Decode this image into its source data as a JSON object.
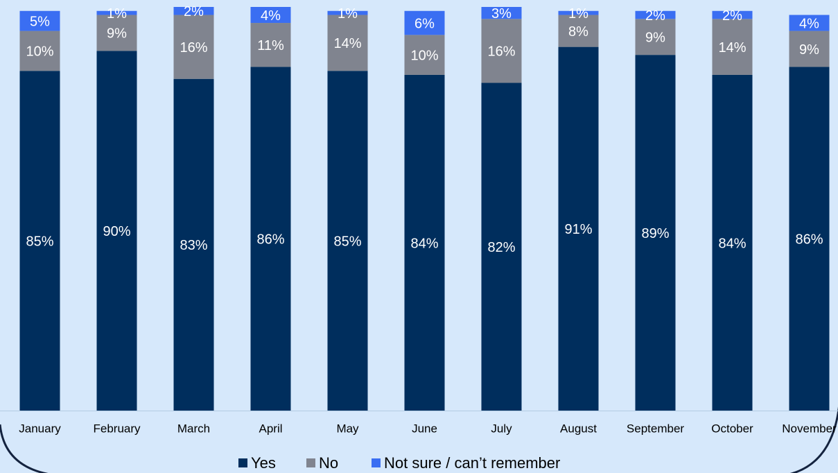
{
  "chart_data": {
    "type": "stacked-bar",
    "categories": [
      "January",
      "February",
      "March",
      "April",
      "May",
      "June",
      "July",
      "August",
      "September",
      "October",
      "November"
    ],
    "series": [
      {
        "name": "Yes",
        "color": "#002e5d",
        "values": [
          85,
          90,
          83,
          86,
          85,
          84,
          82,
          91,
          89,
          84,
          86
        ],
        "value_labels": [
          "85%",
          "90%",
          "83%",
          "86%",
          "85%",
          "84%",
          "82%",
          "91%",
          "89%",
          "84%",
          "86%"
        ]
      },
      {
        "name": "No",
        "color": "#80848f",
        "values": [
          10,
          9,
          16,
          11,
          14,
          10,
          16,
          8,
          9,
          14,
          9
        ],
        "value_labels": [
          "10%",
          "9%",
          "16%",
          "11%",
          "14%",
          "10%",
          "16%",
          "8%",
          "9%",
          "14%",
          "9%"
        ]
      },
      {
        "name": "Not sure / can’t remember",
        "color": "#3a6ef2",
        "values": [
          5,
          1,
          2,
          4,
          1,
          6,
          3,
          1,
          2,
          2,
          4
        ],
        "value_labels": [
          "5%",
          "1%",
          "2%",
          "4%",
          "1%",
          "6%",
          "3%",
          "1%",
          "2%",
          "2%",
          "4%"
        ]
      }
    ],
    "legend": "bottom"
  }
}
